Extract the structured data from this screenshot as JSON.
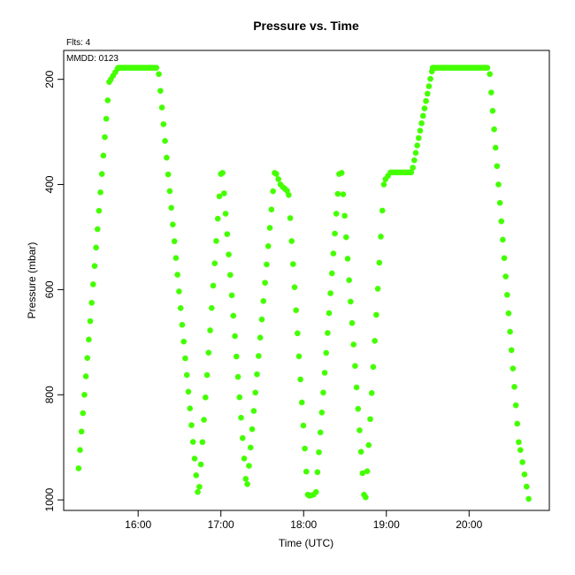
{
  "chart_data": {
    "type": "scatter",
    "title": "Pressure  vs. Time",
    "annotations": {
      "flights": "Flts: 4",
      "date": "MMDD: 0123"
    },
    "xlabel": "Time (UTC)",
    "ylabel": "Pressure (mbar)",
    "x_unit": "hours UTC",
    "xlim": [
      15.1,
      20.97
    ],
    "ylim": [
      1020,
      145
    ],
    "y_axis_inverted": true,
    "grid": false,
    "legend": "none",
    "marker_color": "#44ff00",
    "x_ticks": [
      {
        "value": 16,
        "label": "16:00"
      },
      {
        "value": 17,
        "label": "17:00"
      },
      {
        "value": 18,
        "label": "18:00"
      },
      {
        "value": 19,
        "label": "19:00"
      },
      {
        "value": 20,
        "label": "20:00"
      }
    ],
    "y_ticks": [
      {
        "value": 200,
        "label": "200"
      },
      {
        "value": 400,
        "label": "400"
      },
      {
        "value": 600,
        "label": "600"
      },
      {
        "value": 800,
        "label": "800"
      },
      {
        "value": 1000,
        "label": "1000"
      }
    ],
    "segments": [
      {
        "x0": 15.28,
        "y0": 940,
        "x1": 15.65,
        "y1": 205,
        "n": 22
      },
      {
        "x0": 15.67,
        "y0": 200,
        "x1": 15.75,
        "y1": 180,
        "n": 4
      },
      {
        "x0": 15.76,
        "y0": 178,
        "x1": 16.22,
        "y1": 178,
        "n": 24
      },
      {
        "x0": 16.25,
        "y0": 190,
        "x1": 16.72,
        "y1": 985,
        "n": 26
      },
      {
        "x0": 16.74,
        "y0": 975,
        "x1": 17.0,
        "y1": 380,
        "n": 15
      },
      {
        "x0": 17.02,
        "y0": 378,
        "x1": 17.3,
        "y1": 960,
        "n": 16
      },
      {
        "x0": 17.32,
        "y0": 970,
        "x1": 17.65,
        "y1": 378,
        "n": 18
      },
      {
        "x0": 17.67,
        "y0": 380,
        "x1": 17.72,
        "y1": 400,
        "n": 3
      },
      {
        "x0": 17.75,
        "y0": 405,
        "x1": 17.8,
        "y1": 412,
        "n": 3
      },
      {
        "x0": 17.82,
        "y0": 420,
        "x1": 18.05,
        "y1": 990,
        "n": 14
      },
      {
        "x0": 18.07,
        "y0": 992,
        "x1": 18.12,
        "y1": 990,
        "n": 3
      },
      {
        "x0": 18.15,
        "y0": 985,
        "x1": 18.43,
        "y1": 380,
        "n": 17
      },
      {
        "x0": 18.46,
        "y0": 378,
        "x1": 18.73,
        "y1": 990,
        "n": 16
      },
      {
        "x0": 18.75,
        "y0": 995,
        "x1": 18.97,
        "y1": 400,
        "n": 13
      },
      {
        "x0": 18.99,
        "y0": 390,
        "x1": 19.05,
        "y1": 377,
        "n": 3
      },
      {
        "x0": 19.07,
        "y0": 377,
        "x1": 19.3,
        "y1": 377,
        "n": 13
      },
      {
        "x0": 19.32,
        "y0": 368,
        "x1": 19.55,
        "y1": 185,
        "n": 14
      },
      {
        "x0": 19.56,
        "y0": 178,
        "x1": 20.22,
        "y1": 178,
        "n": 34
      },
      {
        "x0": 20.25,
        "y0": 190,
        "x1": 20.6,
        "y1": 890,
        "n": 21
      },
      {
        "x0": 20.62,
        "y0": 905,
        "x1": 20.72,
        "y1": 998,
        "n": 5
      }
    ]
  }
}
